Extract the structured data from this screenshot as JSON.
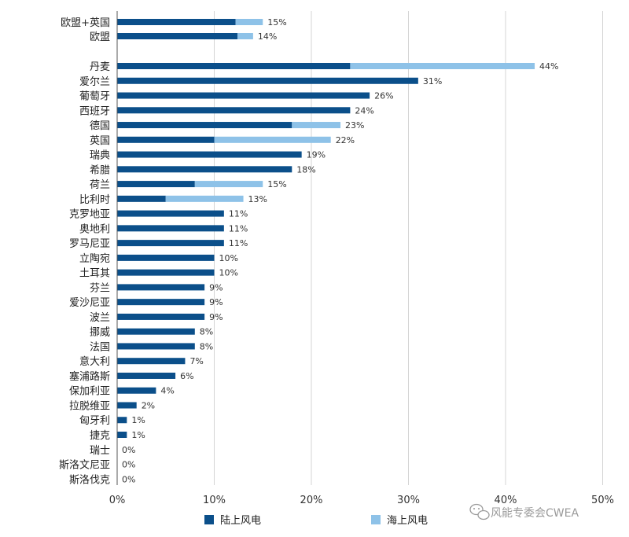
{
  "chart_data": {
    "type": "bar",
    "orientation": "horizontal",
    "stacked": true,
    "title": "",
    "xlabel": "",
    "ylabel": "",
    "xlim": [
      0,
      50
    ],
    "x_ticks": [
      "0%",
      "10%",
      "20%",
      "30%",
      "40%",
      "50%"
    ],
    "grid": "vertical",
    "legend_position": "bottom",
    "colors": {
      "onshore": "#0b4f8a",
      "offshore": "#8ec2e8"
    },
    "categories": [
      "欧盟+英国",
      "欧盟",
      "丹麦",
      "爱尔兰",
      "葡萄牙",
      "西班牙",
      "德国",
      "英国",
      "瑞典",
      "希腊",
      "荷兰",
      "比利时",
      "克罗地亚",
      "奥地利",
      "罗马尼亚",
      "立陶宛",
      "土耳其",
      "芬兰",
      "爱沙尼亚",
      "波兰",
      "挪威",
      "法国",
      "意大利",
      "塞浦路斯",
      "保加利亚",
      "拉脱维亚",
      "匈牙利",
      "捷克",
      "瑞士",
      "斯洛文尼亚",
      "斯洛伐克"
    ],
    "series": [
      {
        "name": "陆上风电",
        "values": [
          12.2,
          12.4,
          24,
          31,
          26,
          24,
          18,
          10,
          19,
          18,
          8,
          5,
          11,
          11,
          11,
          10,
          10,
          9,
          9,
          9,
          8,
          8,
          7,
          6,
          4,
          2,
          1,
          1,
          0,
          0,
          0
        ]
      },
      {
        "name": "海上风电",
        "values": [
          2.8,
          1.6,
          19,
          0,
          0,
          0,
          5,
          12,
          0,
          0,
          7,
          8,
          0,
          0,
          0,
          0,
          0,
          0,
          0,
          0,
          0,
          0,
          0,
          0,
          0,
          0,
          0,
          0,
          0,
          0,
          0
        ]
      }
    ],
    "totals": [
      "15%",
      "14%",
      "44%",
      "31%",
      "26%",
      "24%",
      "23%",
      "22%",
      "19%",
      "18%",
      "15%",
      "13%",
      "11%",
      "11%",
      "11%",
      "10%",
      "10%",
      "9%",
      "9%",
      "9%",
      "8%",
      "8%",
      "7%",
      "6%",
      "4%",
      "2%",
      "1%",
      "1%",
      "0%",
      "0%",
      "0%"
    ]
  },
  "legend": {
    "onshore_label": "陆上风电",
    "offshore_label": "海上风电"
  },
  "watermark": {
    "text": "风能专委会CWEA",
    "icon": "wechat-icon"
  }
}
